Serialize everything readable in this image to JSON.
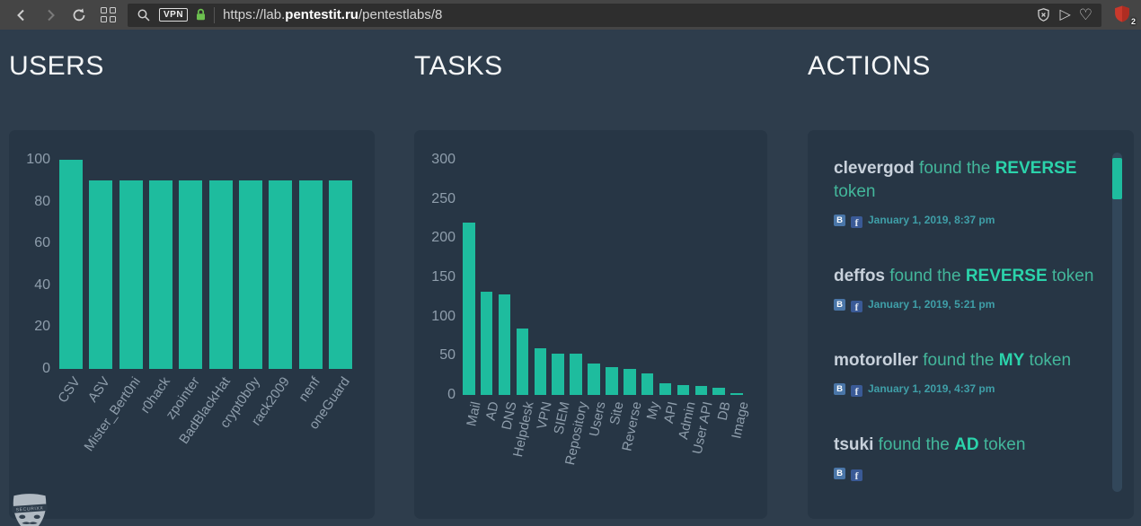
{
  "browser": {
    "url_prefix": "https://lab.",
    "url_domain": "pentestit.ru",
    "url_path": "/pentestlabs/8",
    "vpn_badge": "VPN",
    "extension_badge_count": "2"
  },
  "page": {
    "logo_text": "SECURIXX",
    "colors": {
      "accent": "#1ebc9e",
      "page_bg": "#2e3d4c",
      "panel_bg": "#273645",
      "heading": "#f4f6f7",
      "axis": "#8f9eac",
      "username": "#c8d1db",
      "action_text": "#43b79b",
      "token_text": "#2bd3ab",
      "date": "#3f9fa8",
      "toolbar_bg": "#454545",
      "urlbar_bg": "#2e2e2e",
      "toolbar_icon": "#cfcfcf",
      "lock_green": "#6cc04f",
      "ext_red": "#c9392c",
      "vk_blue": "#4a76a8",
      "fb_blue": "#3a5a96",
      "track": "#32475a"
    }
  },
  "chart_data": [
    {
      "type": "bar",
      "title": "USERS",
      "categories": [
        "CSV",
        "ASV",
        "Mister_Bert0ni",
        "r0hack",
        "zpointer",
        "BadBlackHat",
        "crypt0b0y",
        "rack2009",
        "nenf",
        "oneGuard"
      ],
      "values": [
        100,
        90,
        90,
        90,
        90,
        90,
        90,
        90,
        90,
        90
      ],
      "xlabel": "",
      "ylabel": "",
      "ylim": [
        0,
        100
      ],
      "yticks": [
        0,
        20,
        40,
        60,
        80,
        100
      ],
      "grid": false,
      "legend": false,
      "bar_color": "#1ebc9e"
    },
    {
      "type": "bar",
      "title": "TASKS",
      "categories": [
        "Mail",
        "AD",
        "DNS",
        "Helpdesk",
        "VPN",
        "SIEM",
        "Repository",
        "Users",
        "Site",
        "Reverse",
        "My",
        "API",
        "Admin",
        "User API",
        "DB",
        "Image"
      ],
      "values": [
        220,
        132,
        128,
        85,
        60,
        53,
        53,
        40,
        36,
        33,
        28,
        15,
        13,
        11,
        9,
        2
      ],
      "xlabel": "",
      "ylabel": "",
      "ylim": [
        0,
        300
      ],
      "yticks": [
        0,
        50,
        100,
        150,
        200,
        250,
        300
      ],
      "grid": false,
      "legend": false,
      "bar_color": "#1ebc9e"
    }
  ],
  "actions": {
    "title": "ACTIONS",
    "vk_glyph": "B",
    "facebook_glyph": "f",
    "items": [
      {
        "user": "clevergod",
        "action": "found the",
        "token": "REVERSE",
        "object": "token",
        "date": "January 1, 2019, 8:37 pm"
      },
      {
        "user": "deffos",
        "action": "found the",
        "token": "REVERSE",
        "object": "token",
        "date": "January 1, 2019, 5:21 pm"
      },
      {
        "user": "motoroller",
        "action": "found the",
        "token": "MY",
        "object": "token",
        "date": "January 1, 2019, 4:37 pm"
      },
      {
        "user": "tsuki",
        "action": "found the",
        "token": "AD",
        "object": "token",
        "date": ""
      }
    ]
  }
}
